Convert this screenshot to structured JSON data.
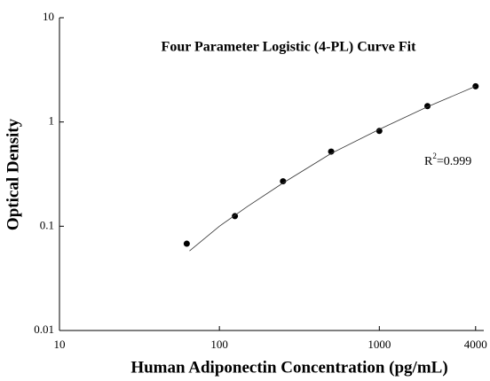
{
  "chart_data": {
    "type": "scatter",
    "title": "Four Parameter Logistic (4-PL) Curve Fit",
    "x_label": "Human Adiponectin Concentration (pg/mL)",
    "y_label": "Optical Density",
    "xlog": true,
    "ylog": true,
    "xlim": [
      10,
      4500
    ],
    "ylim": [
      0.01,
      10
    ],
    "xticks": [
      10,
      100,
      1000,
      4000
    ],
    "yticks": [
      0.01,
      0.1,
      1,
      10
    ],
    "color": "#000000",
    "series": [
      {
        "type": "scatter",
        "x": [
          62.5,
          125,
          250,
          500,
          1000,
          2000,
          4000
        ],
        "values": [
          0.068,
          0.125,
          0.27,
          0.52,
          0.82,
          1.42,
          2.2
        ]
      },
      {
        "type": "line",
        "x": [
          65,
          100,
          150,
          250,
          500,
          1000,
          2000,
          4000
        ],
        "values": [
          0.058,
          0.1,
          0.155,
          0.26,
          0.5,
          0.85,
          1.4,
          2.2
        ]
      }
    ],
    "annotation": {
      "base": "R",
      "superscript": "2",
      "text": "=0.999"
    }
  }
}
